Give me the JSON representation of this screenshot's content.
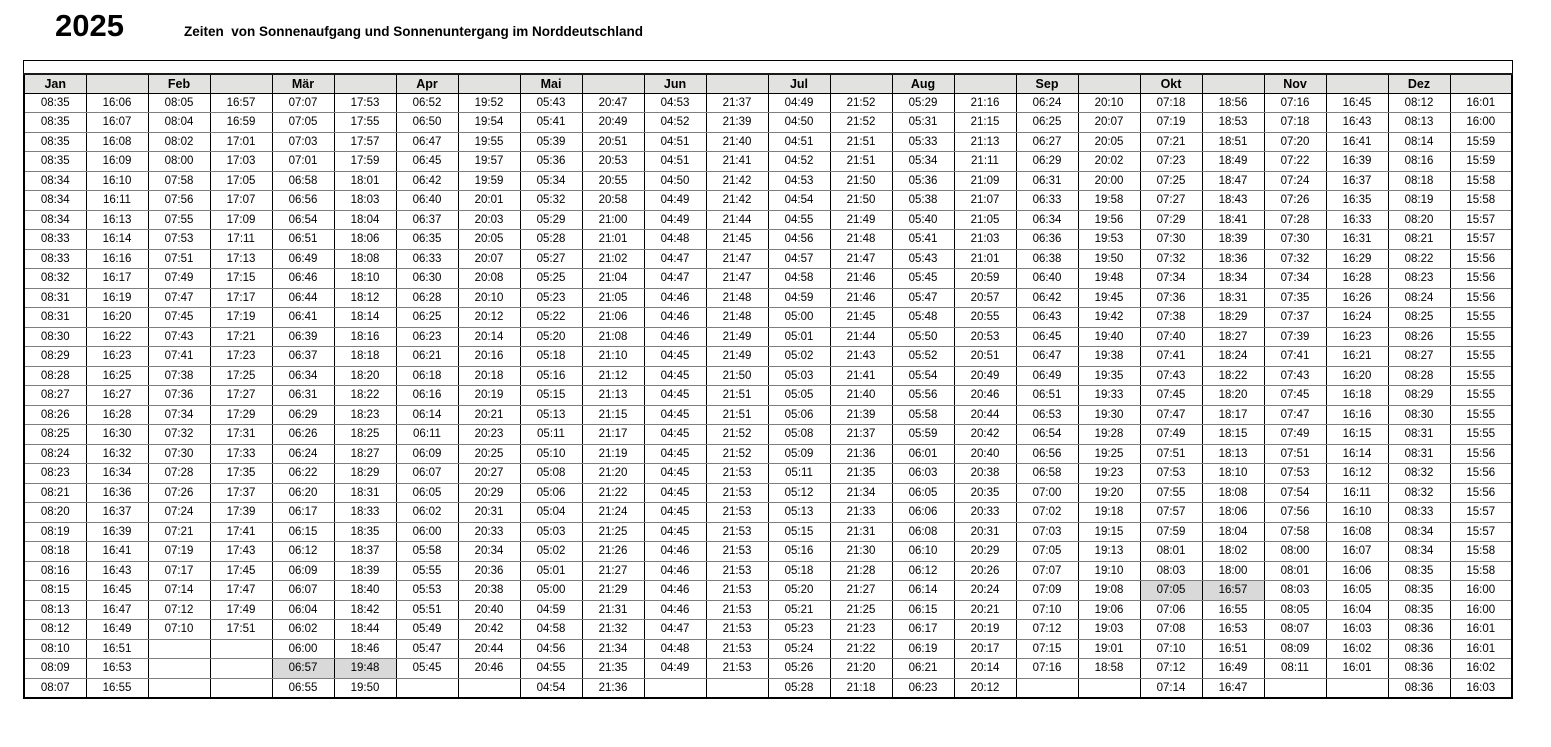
{
  "page": {
    "title": "2025",
    "subtitle": "Zeiten  von Sonnenaufgang und Sonnenuntergang im Norddeutschland"
  },
  "table": {
    "days_per_column": 31,
    "header_background": "#e2e2e0",
    "highlight_color": "#d9d9d9",
    "highlighted_cells": [
      {
        "month": "Mär",
        "day": 30,
        "sunrise": "06:57",
        "sunset": "19:48"
      },
      {
        "month": "Okt",
        "day": 26,
        "sunrise": "07:05",
        "sunset": "16:57"
      }
    ],
    "months": [
      {
        "label": "Jan",
        "sunrise": [
          "08:35",
          "08:35",
          "08:35",
          "08:35",
          "08:34",
          "08:34",
          "08:34",
          "08:33",
          "08:33",
          "08:32",
          "08:31",
          "08:31",
          "08:30",
          "08:29",
          "08:28",
          "08:27",
          "08:26",
          "08:25",
          "08:24",
          "08:23",
          "08:21",
          "08:20",
          "08:19",
          "08:18",
          "08:16",
          "08:15",
          "08:13",
          "08:12",
          "08:10",
          "08:09",
          "08:07"
        ],
        "sunset": [
          "16:06",
          "16:07",
          "16:08",
          "16:09",
          "16:10",
          "16:11",
          "16:13",
          "16:14",
          "16:16",
          "16:17",
          "16:19",
          "16:20",
          "16:22",
          "16:23",
          "16:25",
          "16:27",
          "16:28",
          "16:30",
          "16:32",
          "16:34",
          "16:36",
          "16:37",
          "16:39",
          "16:41",
          "16:43",
          "16:45",
          "16:47",
          "16:49",
          "16:51",
          "16:53",
          "16:55"
        ]
      },
      {
        "label": "Feb",
        "sunrise": [
          "08:05",
          "08:04",
          "08:02",
          "08:00",
          "07:58",
          "07:56",
          "07:55",
          "07:53",
          "07:51",
          "07:49",
          "07:47",
          "07:45",
          "07:43",
          "07:41",
          "07:38",
          "07:36",
          "07:34",
          "07:32",
          "07:30",
          "07:28",
          "07:26",
          "07:24",
          "07:21",
          "07:19",
          "07:17",
          "07:14",
          "07:12",
          "07:10",
          "",
          "",
          ""
        ],
        "sunset": [
          "16:57",
          "16:59",
          "17:01",
          "17:03",
          "17:05",
          "17:07",
          "17:09",
          "17:11",
          "17:13",
          "17:15",
          "17:17",
          "17:19",
          "17:21",
          "17:23",
          "17:25",
          "17:27",
          "17:29",
          "17:31",
          "17:33",
          "17:35",
          "17:37",
          "17:39",
          "17:41",
          "17:43",
          "17:45",
          "17:47",
          "17:49",
          "17:51",
          "",
          "",
          ""
        ]
      },
      {
        "label": "Mär",
        "sunrise": [
          "07:07",
          "07:05",
          "07:03",
          "07:01",
          "06:58",
          "06:56",
          "06:54",
          "06:51",
          "06:49",
          "06:46",
          "06:44",
          "06:41",
          "06:39",
          "06:37",
          "06:34",
          "06:31",
          "06:29",
          "06:26",
          "06:24",
          "06:22",
          "06:20",
          "06:17",
          "06:15",
          "06:12",
          "06:09",
          "06:07",
          "06:04",
          "06:02",
          "06:00",
          "06:57",
          "06:55"
        ],
        "sunset": [
          "17:53",
          "17:55",
          "17:57",
          "17:59",
          "18:01",
          "18:03",
          "18:04",
          "18:06",
          "18:08",
          "18:10",
          "18:12",
          "18:14",
          "18:16",
          "18:18",
          "18:20",
          "18:22",
          "18:23",
          "18:25",
          "18:27",
          "18:29",
          "18:31",
          "18:33",
          "18:35",
          "18:37",
          "18:39",
          "18:40",
          "18:42",
          "18:44",
          "18:46",
          "19:48",
          "19:50"
        ]
      },
      {
        "label": "Apr",
        "sunrise": [
          "06:52",
          "06:50",
          "06:47",
          "06:45",
          "06:42",
          "06:40",
          "06:37",
          "06:35",
          "06:33",
          "06:30",
          "06:28",
          "06:25",
          "06:23",
          "06:21",
          "06:18",
          "06:16",
          "06:14",
          "06:11",
          "06:09",
          "06:07",
          "06:05",
          "06:02",
          "06:00",
          "05:58",
          "05:55",
          "05:53",
          "05:51",
          "05:49",
          "05:47",
          "05:45",
          ""
        ],
        "sunset": [
          "19:52",
          "19:54",
          "19:55",
          "19:57",
          "19:59",
          "20:01",
          "20:03",
          "20:05",
          "20:07",
          "20:08",
          "20:10",
          "20:12",
          "20:14",
          "20:16",
          "20:18",
          "20:19",
          "20:21",
          "20:23",
          "20:25",
          "20:27",
          "20:29",
          "20:31",
          "20:33",
          "20:34",
          "20:36",
          "20:38",
          "20:40",
          "20:42",
          "20:44",
          "20:46",
          ""
        ]
      },
      {
        "label": "Mai",
        "sunrise": [
          "05:43",
          "05:41",
          "05:39",
          "05:36",
          "05:34",
          "05:32",
          "05:29",
          "05:28",
          "05:27",
          "05:25",
          "05:23",
          "05:22",
          "05:20",
          "05:18",
          "05:16",
          "05:15",
          "05:13",
          "05:11",
          "05:10",
          "05:08",
          "05:06",
          "05:04",
          "05:03",
          "05:02",
          "05:01",
          "05:00",
          "04:59",
          "04:58",
          "04:56",
          "04:55",
          "04:54"
        ],
        "sunset": [
          "20:47",
          "20:49",
          "20:51",
          "20:53",
          "20:55",
          "20:58",
          "21:00",
          "21:01",
          "21:02",
          "21:04",
          "21:05",
          "21:06",
          "21:08",
          "21:10",
          "21:12",
          "21:13",
          "21:15",
          "21:17",
          "21:19",
          "21:20",
          "21:22",
          "21:24",
          "21:25",
          "21:26",
          "21:27",
          "21:29",
          "21:31",
          "21:32",
          "21:34",
          "21:35",
          "21:36"
        ]
      },
      {
        "label": "Jun",
        "sunrise": [
          "04:53",
          "04:52",
          "04:51",
          "04:51",
          "04:50",
          "04:49",
          "04:49",
          "04:48",
          "04:47",
          "04:47",
          "04:46",
          "04:46",
          "04:46",
          "04:45",
          "04:45",
          "04:45",
          "04:45",
          "04:45",
          "04:45",
          "04:45",
          "04:45",
          "04:45",
          "04:45",
          "04:46",
          "04:46",
          "04:46",
          "04:46",
          "04:47",
          "04:48",
          "04:49",
          ""
        ],
        "sunset": [
          "21:37",
          "21:39",
          "21:40",
          "21:41",
          "21:42",
          "21:42",
          "21:44",
          "21:45",
          "21:47",
          "21:47",
          "21:48",
          "21:48",
          "21:49",
          "21:49",
          "21:50",
          "21:51",
          "21:51",
          "21:52",
          "21:52",
          "21:53",
          "21:53",
          "21:53",
          "21:53",
          "21:53",
          "21:53",
          "21:53",
          "21:53",
          "21:53",
          "21:53",
          "21:53",
          ""
        ]
      },
      {
        "label": "Jul",
        "sunrise": [
          "04:49",
          "04:50",
          "04:51",
          "04:52",
          "04:53",
          "04:54",
          "04:55",
          "04:56",
          "04:57",
          "04:58",
          "04:59",
          "05:00",
          "05:01",
          "05:02",
          "05:03",
          "05:05",
          "05:06",
          "05:08",
          "05:09",
          "05:11",
          "05:12",
          "05:13",
          "05:15",
          "05:16",
          "05:18",
          "05:20",
          "05:21",
          "05:23",
          "05:24",
          "05:26",
          "05:28"
        ],
        "sunset": [
          "21:52",
          "21:52",
          "21:51",
          "21:51",
          "21:50",
          "21:50",
          "21:49",
          "21:48",
          "21:47",
          "21:46",
          "21:46",
          "21:45",
          "21:44",
          "21:43",
          "21:41",
          "21:40",
          "21:39",
          "21:37",
          "21:36",
          "21:35",
          "21:34",
          "21:33",
          "21:31",
          "21:30",
          "21:28",
          "21:27",
          "21:25",
          "21:23",
          "21:22",
          "21:20",
          "21:18"
        ]
      },
      {
        "label": "Aug",
        "sunrise": [
          "05:29",
          "05:31",
          "05:33",
          "05:34",
          "05:36",
          "05:38",
          "05:40",
          "05:41",
          "05:43",
          "05:45",
          "05:47",
          "05:48",
          "05:50",
          "05:52",
          "05:54",
          "05:56",
          "05:58",
          "05:59",
          "06:01",
          "06:03",
          "06:05",
          "06:06",
          "06:08",
          "06:10",
          "06:12",
          "06:14",
          "06:15",
          "06:17",
          "06:19",
          "06:21",
          "06:23"
        ],
        "sunset": [
          "21:16",
          "21:15",
          "21:13",
          "21:11",
          "21:09",
          "21:07",
          "21:05",
          "21:03",
          "21:01",
          "20:59",
          "20:57",
          "20:55",
          "20:53",
          "20:51",
          "20:49",
          "20:46",
          "20:44",
          "20:42",
          "20:40",
          "20:38",
          "20:35",
          "20:33",
          "20:31",
          "20:29",
          "20:26",
          "20:24",
          "20:21",
          "20:19",
          "20:17",
          "20:14",
          "20:12"
        ]
      },
      {
        "label": "Sep",
        "sunrise": [
          "06:24",
          "06:25",
          "06:27",
          "06:29",
          "06:31",
          "06:33",
          "06:34",
          "06:36",
          "06:38",
          "06:40",
          "06:42",
          "06:43",
          "06:45",
          "06:47",
          "06:49",
          "06:51",
          "06:53",
          "06:54",
          "06:56",
          "06:58",
          "07:00",
          "07:02",
          "07:03",
          "07:05",
          "07:07",
          "07:09",
          "07:10",
          "07:12",
          "07:15",
          "07:16",
          ""
        ],
        "sunset": [
          "20:10",
          "20:07",
          "20:05",
          "20:02",
          "20:00",
          "19:58",
          "19:56",
          "19:53",
          "19:50",
          "19:48",
          "19:45",
          "19:42",
          "19:40",
          "19:38",
          "19:35",
          "19:33",
          "19:30",
          "19:28",
          "19:25",
          "19:23",
          "19:20",
          "19:18",
          "19:15",
          "19:13",
          "19:10",
          "19:08",
          "19:06",
          "19:03",
          "19:01",
          "18:58",
          ""
        ]
      },
      {
        "label": "Okt",
        "sunrise": [
          "07:18",
          "07:19",
          "07:21",
          "07:23",
          "07:25",
          "07:27",
          "07:29",
          "07:30",
          "07:32",
          "07:34",
          "07:36",
          "07:38",
          "07:40",
          "07:41",
          "07:43",
          "07:45",
          "07:47",
          "07:49",
          "07:51",
          "07:53",
          "07:55",
          "07:57",
          "07:59",
          "08:01",
          "08:03",
          "07:05",
          "07:06",
          "07:08",
          "07:10",
          "07:12",
          "07:14"
        ],
        "sunset": [
          "18:56",
          "18:53",
          "18:51",
          "18:49",
          "18:47",
          "18:43",
          "18:41",
          "18:39",
          "18:36",
          "18:34",
          "18:31",
          "18:29",
          "18:27",
          "18:24",
          "18:22",
          "18:20",
          "18:17",
          "18:15",
          "18:13",
          "18:10",
          "18:08",
          "18:06",
          "18:04",
          "18:02",
          "18:00",
          "16:57",
          "16:55",
          "16:53",
          "16:51",
          "16:49",
          "16:47"
        ]
      },
      {
        "label": "Nov",
        "sunrise": [
          "07:16",
          "07:18",
          "07:20",
          "07:22",
          "07:24",
          "07:26",
          "07:28",
          "07:30",
          "07:32",
          "07:34",
          "07:35",
          "07:37",
          "07:39",
          "07:41",
          "07:43",
          "07:45",
          "07:47",
          "07:49",
          "07:51",
          "07:53",
          "07:54",
          "07:56",
          "07:58",
          "08:00",
          "08:01",
          "08:03",
          "08:05",
          "08:07",
          "08:09",
          "08:11",
          ""
        ],
        "sunset": [
          "16:45",
          "16:43",
          "16:41",
          "16:39",
          "16:37",
          "16:35",
          "16:33",
          "16:31",
          "16:29",
          "16:28",
          "16:26",
          "16:24",
          "16:23",
          "16:21",
          "16:20",
          "16:18",
          "16:16",
          "16:15",
          "16:14",
          "16:12",
          "16:11",
          "16:10",
          "16:08",
          "16:07",
          "16:06",
          "16:05",
          "16:04",
          "16:03",
          "16:02",
          "16:01",
          ""
        ]
      },
      {
        "label": "Dez",
        "sunrise": [
          "08:12",
          "08:13",
          "08:14",
          "08:16",
          "08:18",
          "08:19",
          "08:20",
          "08:21",
          "08:22",
          "08:23",
          "08:24",
          "08:25",
          "08:26",
          "08:27",
          "08:28",
          "08:29",
          "08:30",
          "08:31",
          "08:31",
          "08:32",
          "08:32",
          "08:33",
          "08:34",
          "08:34",
          "08:35",
          "08:35",
          "08:35",
          "08:36",
          "08:36",
          "08:36",
          "08:36"
        ],
        "sunset": [
          "16:01",
          "16:00",
          "15:59",
          "15:59",
          "15:58",
          "15:58",
          "15:57",
          "15:57",
          "15:56",
          "15:56",
          "15:56",
          "15:55",
          "15:55",
          "15:55",
          "15:55",
          "15:55",
          "15:55",
          "15:55",
          "15:56",
          "15:56",
          "15:56",
          "15:57",
          "15:57",
          "15:58",
          "15:58",
          "16:00",
          "16:00",
          "16:01",
          "16:01",
          "16:02",
          "16:03"
        ]
      }
    ]
  }
}
